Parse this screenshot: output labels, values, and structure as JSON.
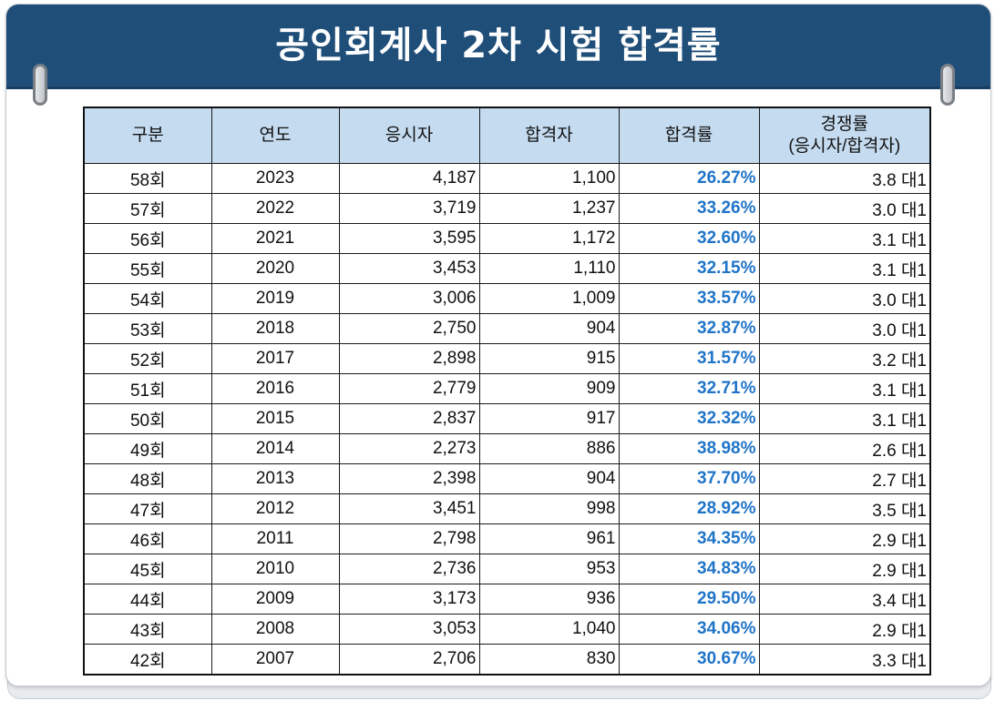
{
  "title": "공인회계사 2차 시험 합격률",
  "table": {
    "headers": [
      "구분",
      "연도",
      "응시자",
      "합격자",
      "합격률",
      "경쟁률",
      "(응시자/합격자)"
    ],
    "rows": [
      [
        "58회",
        "2023",
        "4,187",
        "1,100",
        "26.27%",
        "3.8 대1"
      ],
      [
        "57회",
        "2022",
        "3,719",
        "1,237",
        "33.26%",
        "3.0 대1"
      ],
      [
        "56회",
        "2021",
        "3,595",
        "1,172",
        "32.60%",
        "3.1 대1"
      ],
      [
        "55회",
        "2020",
        "3,453",
        "1,110",
        "32.15%",
        "3.1 대1"
      ],
      [
        "54회",
        "2019",
        "3,006",
        "1,009",
        "33.57%",
        "3.0 대1"
      ],
      [
        "53회",
        "2018",
        "2,750",
        "904",
        "32.87%",
        "3.0 대1"
      ],
      [
        "52회",
        "2017",
        "2,898",
        "915",
        "31.57%",
        "3.2 대1"
      ],
      [
        "51회",
        "2016",
        "2,779",
        "909",
        "32.71%",
        "3.1 대1"
      ],
      [
        "50회",
        "2015",
        "2,837",
        "917",
        "32.32%",
        "3.1 대1"
      ],
      [
        "49회",
        "2014",
        "2,273",
        "886",
        "38.98%",
        "2.6 대1"
      ],
      [
        "48회",
        "2013",
        "2,398",
        "904",
        "37.70%",
        "2.7 대1"
      ],
      [
        "47회",
        "2012",
        "3,451",
        "998",
        "28.92%",
        "3.5 대1"
      ],
      [
        "46회",
        "2011",
        "2,798",
        "961",
        "34.35%",
        "2.9 대1"
      ],
      [
        "45회",
        "2010",
        "2,736",
        "953",
        "34.83%",
        "2.9 대1"
      ],
      [
        "44회",
        "2009",
        "3,173",
        "936",
        "29.50%",
        "3.4 대1"
      ],
      [
        "43회",
        "2008",
        "3,053",
        "1,040",
        "34.06%",
        "2.9 대1"
      ],
      [
        "42회",
        "2007",
        "2,706",
        "830",
        "30.67%",
        "3.3 대1"
      ]
    ]
  },
  "colors": {
    "header_bg": "#1f4e79",
    "table_header_bg": "#c5dbf0",
    "rate_text": "#1f74c8"
  }
}
